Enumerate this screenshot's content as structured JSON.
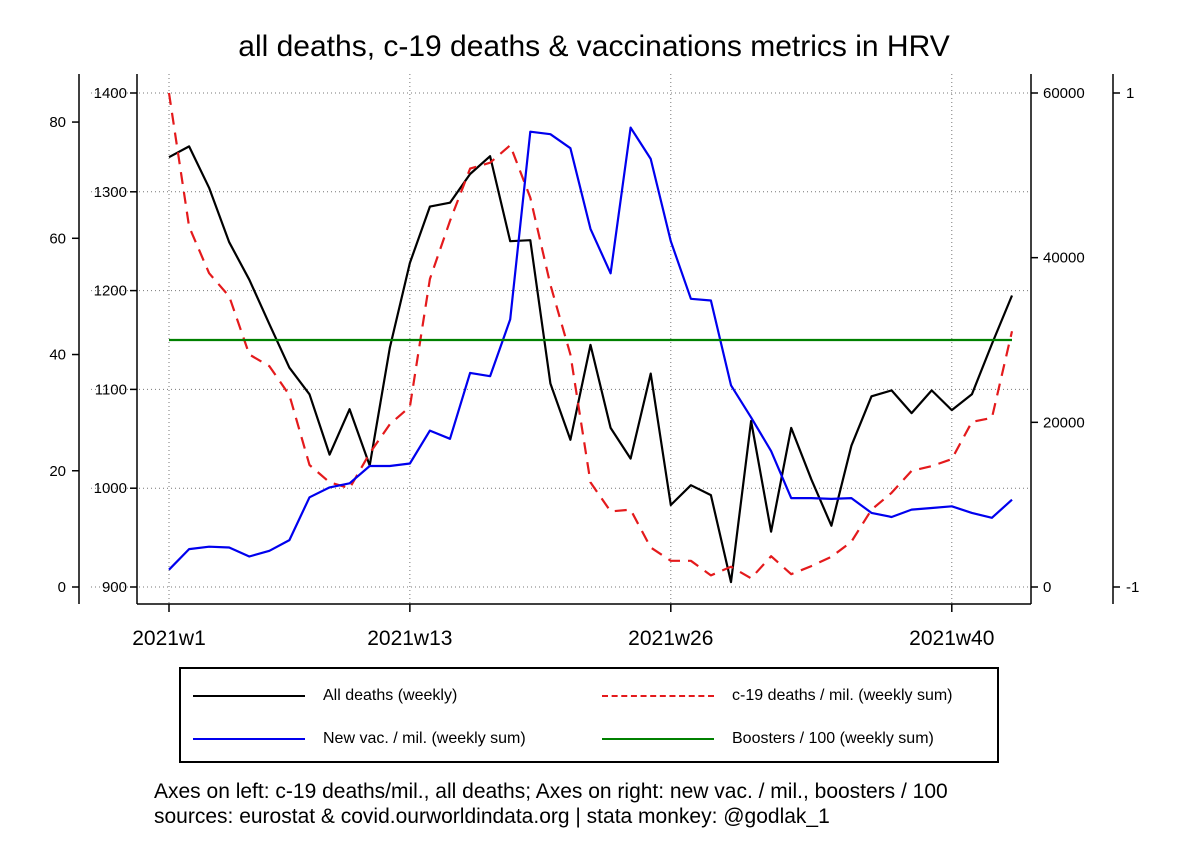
{
  "chart_data": {
    "type": "line",
    "title": "all deaths, c-19 deaths & vaccinations metrics in HRV",
    "x_ticks": [
      {
        "week": 1,
        "label": "2021w1"
      },
      {
        "week": 13,
        "label": "2021w13"
      },
      {
        "week": 26,
        "label": "2021w26"
      },
      {
        "week": 40,
        "label": "2021w40"
      }
    ],
    "xlim": [
      1,
      43
    ],
    "axes": {
      "left_outer": {
        "range": [
          0,
          85
        ],
        "ticks": [
          0,
          20,
          40,
          60,
          80
        ]
      },
      "left_inner": {
        "range": [
          900,
          1400
        ],
        "ticks": [
          900,
          1000,
          1100,
          1200,
          1300,
          1400
        ]
      },
      "right_inner": {
        "range": [
          0,
          60000
        ],
        "ticks": [
          0,
          20000,
          40000,
          60000
        ]
      },
      "right_outer": {
        "range": [
          -1,
          1
        ],
        "ticks": [
          -1,
          1
        ]
      }
    },
    "grid": true,
    "legend_position": "bottom",
    "series": [
      {
        "name": "All deaths (weekly)",
        "axis": "left_inner",
        "color": "#000000",
        "dash": "solid",
        "x": [
          1,
          2,
          3,
          4,
          5,
          6,
          7,
          8,
          9,
          10,
          11,
          12,
          13,
          14,
          15,
          16,
          17,
          18,
          19,
          20,
          21,
          22,
          23,
          24,
          25,
          26,
          27,
          28,
          29,
          30,
          31,
          32,
          33,
          34,
          35,
          36,
          37,
          38,
          39,
          40,
          41,
          42,
          43
        ],
        "y": [
          1335,
          1346,
          1304,
          1249,
          1211,
          1166,
          1122,
          1095,
          1034,
          1080,
          1023,
          1142,
          1228,
          1285,
          1289,
          1318,
          1336,
          1250,
          1251,
          1106,
          1049,
          1145,
          1061,
          1030,
          1116,
          983,
          1003,
          993,
          905,
          1068,
          956,
          1061,
          1009,
          962,
          1043,
          1093,
          1099,
          1076,
          1099,
          1079,
          1095,
          1146,
          1195
        ]
      },
      {
        "name": "c-19 deaths / mil. (weekly sum)",
        "axis": "left_outer",
        "color": "#e41a1c",
        "dash": "dashed",
        "x": [
          1,
          2,
          3,
          4,
          5,
          6,
          7,
          8,
          9,
          10,
          11,
          12,
          13,
          14,
          15,
          16,
          17,
          18,
          19,
          20,
          21,
          22,
          23,
          24,
          25,
          26,
          27,
          28,
          29,
          30,
          31,
          32,
          33,
          34,
          35,
          36,
          37,
          38,
          39,
          40,
          41,
          42,
          43
        ],
        "y": [
          85,
          62,
          54,
          50,
          40,
          38,
          33,
          21,
          18,
          17,
          23,
          28,
          31,
          53,
          63,
          72,
          73,
          76,
          67,
          52,
          40,
          18,
          13,
          13.3,
          6.8,
          4.5,
          4.5,
          2,
          3.5,
          1.5,
          5.3,
          2.2,
          3.6,
          5.2,
          7.8,
          13.3,
          16.2,
          20,
          20.8,
          22,
          28.4,
          29.1,
          44
        ]
      },
      {
        "name": "New vac. / mil. (weekly sum)",
        "axis": "right_inner",
        "color": "#0000ee",
        "dash": "solid",
        "x": [
          1,
          2,
          3,
          4,
          5,
          6,
          7,
          8,
          9,
          10,
          11,
          12,
          13,
          14,
          15,
          16,
          17,
          18,
          19,
          20,
          21,
          22,
          23,
          24,
          25,
          26,
          27,
          28,
          29,
          30,
          31,
          32,
          33,
          34,
          35,
          36,
          37,
          38,
          39,
          40,
          41,
          42,
          43
        ],
        "y": [
          2100,
          4600,
          4900,
          4800,
          3700,
          4400,
          5700,
          10900,
          12100,
          12600,
          14700,
          14700,
          15000,
          19000,
          18000,
          26000,
          25600,
          32500,
          55300,
          55000,
          53300,
          43500,
          38100,
          55800,
          52000,
          42000,
          35000,
          34800,
          24500,
          20600,
          16500,
          10800,
          10800,
          10700,
          10800,
          9000,
          8500,
          9400,
          9600,
          9800,
          9000,
          8400,
          10600
        ]
      },
      {
        "name": "Boosters / 100 (weekly sum)",
        "axis": "right_outer",
        "color": "#008000",
        "dash": "solid",
        "x": [
          1,
          43
        ],
        "y": [
          0,
          0
        ]
      }
    ]
  },
  "legend": {
    "items": [
      {
        "label": "All deaths (weekly)",
        "color": "#000000",
        "style": "solid"
      },
      {
        "label": "c-19 deaths / mil. (weekly sum)",
        "color": "#e41a1c",
        "style": "dashed"
      },
      {
        "label": "New vac. / mil. (weekly sum)",
        "color": "#0000ee",
        "style": "solid"
      },
      {
        "label": "Boosters / 100 (weekly sum)",
        "color": "#008000",
        "style": "solid"
      }
    ]
  },
  "notes": {
    "line1": "Axes on left: c-19 deaths/mil., all deaths; Axes on right: new vac. / mil., boosters / 100",
    "line2": "sources: eurostat & covid.ourworldindata.org | stata monkey: @godlak_1"
  }
}
